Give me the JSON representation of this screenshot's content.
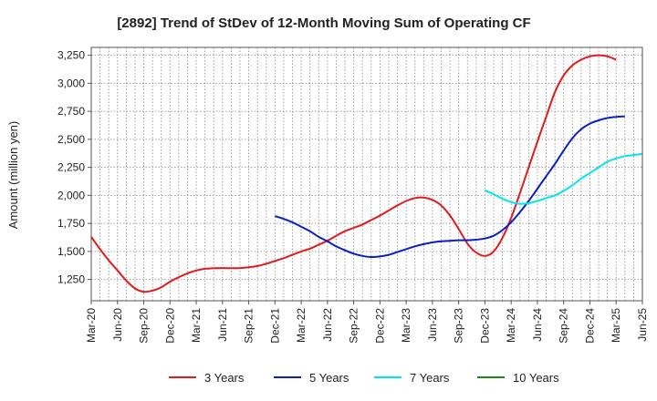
{
  "chart_data": {
    "type": "line",
    "title": "[2892]  Trend of StDev of 12-Month Moving Sum of Operating CF",
    "ylabel": "Amount (million yen)",
    "xlabel": "",
    "x_ticks": [
      "Mar-20",
      "Jun-20",
      "Sep-20",
      "Dec-20",
      "Mar-21",
      "Jun-21",
      "Sep-21",
      "Dec-21",
      "Mar-22",
      "Jun-22",
      "Sep-22",
      "Dec-22",
      "Mar-23",
      "Jun-23",
      "Sep-23",
      "Dec-23",
      "Mar-24",
      "Jun-24",
      "Sep-24",
      "Dec-24",
      "Mar-25",
      "Jun-25"
    ],
    "y_ticks": [
      "1,250",
      "1,500",
      "1,750",
      "2,000",
      "2,250",
      "2,500",
      "2,750",
      "3,000",
      "3,250"
    ],
    "ylim": [
      1060,
      3320
    ],
    "grid": true,
    "legend_position": "bottom",
    "series": [
      {
        "name": "3 Years",
        "color": "#e31a1c",
        "start": "Mar-20",
        "values": [
          1630,
          1520,
          1420,
          1330,
          1240,
          1170,
          1140,
          1150,
          1180,
          1230,
          1270,
          1305,
          1330,
          1345,
          1350,
          1352,
          1350,
          1352,
          1358,
          1370,
          1390,
          1415,
          1440,
          1470,
          1500,
          1525,
          1560,
          1595,
          1640,
          1680,
          1710,
          1740,
          1780,
          1820,
          1865,
          1910,
          1950,
          1975,
          1980,
          1960,
          1910,
          1820,
          1700,
          1570,
          1490,
          1460,
          1500,
          1620,
          1800,
          2020,
          2250,
          2480,
          2700,
          2920,
          3070,
          3160,
          3210,
          3240,
          3250,
          3240,
          3210
        ]
      },
      {
        "name": "5 Years",
        "color": "#0a1fcc",
        "start": "Dec-21",
        "values": [
          1815,
          1790,
          1760,
          1720,
          1680,
          1630,
          1590,
          1545,
          1510,
          1480,
          1460,
          1450,
          1455,
          1470,
          1495,
          1520,
          1545,
          1565,
          1580,
          1590,
          1595,
          1600,
          1600,
          1605,
          1615,
          1640,
          1690,
          1760,
          1850,
          1950,
          2060,
          2170,
          2280,
          2400,
          2510,
          2590,
          2640,
          2670,
          2690,
          2700,
          2705
        ]
      },
      {
        "name": "7 Years",
        "color": "#00e5ee",
        "start": "Dec-23",
        "values": [
          2045,
          2010,
          1970,
          1940,
          1925,
          1930,
          1950,
          1975,
          2000,
          2040,
          2090,
          2150,
          2200,
          2250,
          2300,
          2330,
          2350,
          2360,
          2370
        ]
      },
      {
        "name": "10 Years",
        "color": "#1a8a1a",
        "start": "Dec-23",
        "values": []
      }
    ]
  }
}
